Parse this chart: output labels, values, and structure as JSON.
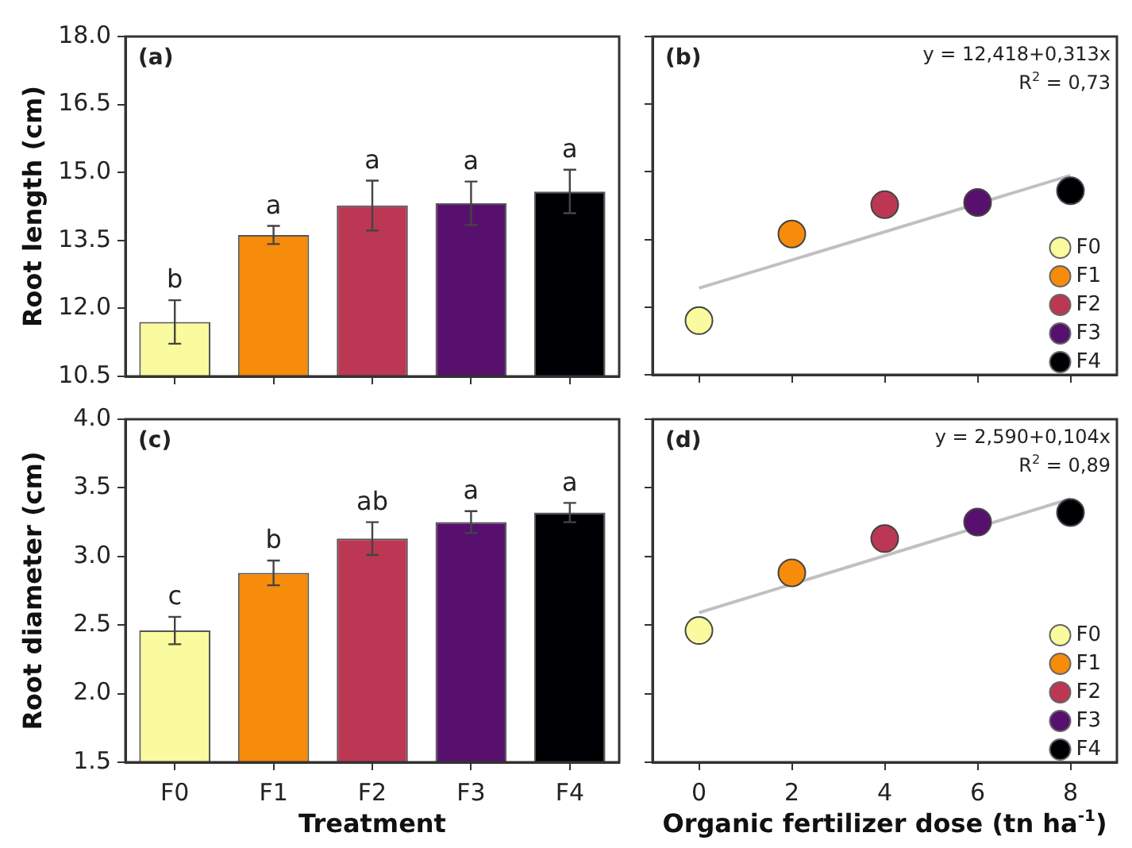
{
  "chart_data": [
    {
      "type": "bar",
      "annotations": [
        "(a)"
      ],
      "ylabel": "Root length (cm)",
      "categories": [
        null,
        null,
        null,
        null,
        null
      ],
      "colors": [
        "#fafa9e",
        "#f68c0a",
        "#bc3754",
        "#57106e",
        "#000004"
      ],
      "values": [
        11.7,
        13.62,
        14.27,
        14.32,
        14.58
      ],
      "errors": [
        0.48,
        0.2,
        0.55,
        0.48,
        0.48
      ],
      "value_labels": [
        "b",
        "a",
        "a",
        "a",
        "a"
      ],
      "ylim": [
        10.5,
        18
      ],
      "yticks": [
        10.5,
        {
          "value": 12,
          "label": "12.0"
        },
        13.5,
        {
          "value": 15,
          "label": "15.0"
        },
        16.5,
        {
          "value": 18,
          "label": "18.0"
        }
      ],
      "tick_labels": "y",
      "grid": false
    },
    {
      "type": "scatter",
      "annotations": [
        "(b)",
        "y = 12,418+0,313x",
        "R$^{2}$ = 0,73"
      ],
      "series": [
        {
          "name": "F0",
          "color": "#fafa9e",
          "x": [
            0
          ],
          "values": [
            11.7
          ]
        },
        {
          "name": "F1",
          "color": "#f68c0a",
          "x": [
            2
          ],
          "values": [
            13.62
          ]
        },
        {
          "name": "F2",
          "color": "#bc3754",
          "x": [
            4
          ],
          "values": [
            14.27
          ]
        },
        {
          "name": "F3",
          "color": "#57106e",
          "x": [
            6
          ],
          "values": [
            14.32
          ]
        },
        {
          "name": "F4",
          "color": "#000004",
          "x": [
            8
          ],
          "values": [
            14.58
          ]
        },
        {
          "type": "line",
          "marker": "none",
          "color": "#c0c0c0",
          "x": [
            0,
            8
          ],
          "values": [
            12.42,
            14.92
          ]
        }
      ],
      "xlim": [
        -1,
        9
      ],
      "xticks": [
        0,
        2,
        4,
        6,
        8
      ],
      "ylim": [
        10.5,
        18
      ],
      "yticks": [
        10.5,
        12,
        13.5,
        15,
        16.5,
        18
      ],
      "marker": "circle",
      "legend": "bottom right",
      "tick_labels": false,
      "grid": false
    },
    {
      "type": "bar",
      "annotations": [
        "(c)"
      ],
      "xlabel": "Treatment",
      "ylabel": "Root diameter (cm)",
      "categories": [
        "F0",
        "F1",
        "F2",
        "F3",
        "F4"
      ],
      "colors": [
        "#fafa9e",
        "#f68c0a",
        "#bc3754",
        "#57106e",
        "#000004"
      ],
      "values": [
        2.46,
        2.88,
        3.13,
        3.25,
        3.32
      ],
      "errors": [
        0.1,
        0.09,
        0.12,
        0.08,
        0.07
      ],
      "value_labels": [
        "c",
        "b",
        "ab",
        "a",
        "a"
      ],
      "ylim": [
        1.5,
        4
      ],
      "yticks": [
        1.5,
        {
          "value": 2,
          "label": "2.0"
        },
        2.5,
        {
          "value": 3,
          "label": "3.0"
        },
        3.5,
        {
          "value": 4,
          "label": "4.0"
        }
      ],
      "grid": false
    },
    {
      "type": "scatter",
      "annotations": [
        "(d)",
        "y = 2,590+0,104x",
        "R$^{2}$ = 0,89"
      ],
      "xlabel": "Organic fertilizer dose (tn ha$^{-1}$)",
      "series": [
        {
          "name": "F0",
          "color": "#fafa9e",
          "x": [
            0
          ],
          "values": [
            2.46
          ]
        },
        {
          "name": "F1",
          "color": "#f68c0a",
          "x": [
            2
          ],
          "values": [
            2.88
          ]
        },
        {
          "name": "F2",
          "color": "#bc3754",
          "x": [
            4
          ],
          "values": [
            3.13
          ]
        },
        {
          "name": "F3",
          "color": "#57106e",
          "x": [
            6
          ],
          "values": [
            3.25
          ]
        },
        {
          "name": "F4",
          "color": "#000004",
          "x": [
            8
          ],
          "values": [
            3.32
          ]
        },
        {
          "type": "line",
          "marker": "none",
          "color": "#c0c0c0",
          "x": [
            0,
            8
          ],
          "values": [
            2.59,
            3.42
          ]
        }
      ],
      "xlim": [
        -1,
        9
      ],
      "xticks": [
        0,
        2,
        4,
        6,
        8
      ],
      "ylim": [
        1.5,
        4
      ],
      "yticks": [
        1.5,
        2,
        2.5,
        3,
        3.5,
        4
      ],
      "marker": "circle",
      "legend": "bottom right",
      "tick_labels": "x",
      "grid": false
    }
  ]
}
